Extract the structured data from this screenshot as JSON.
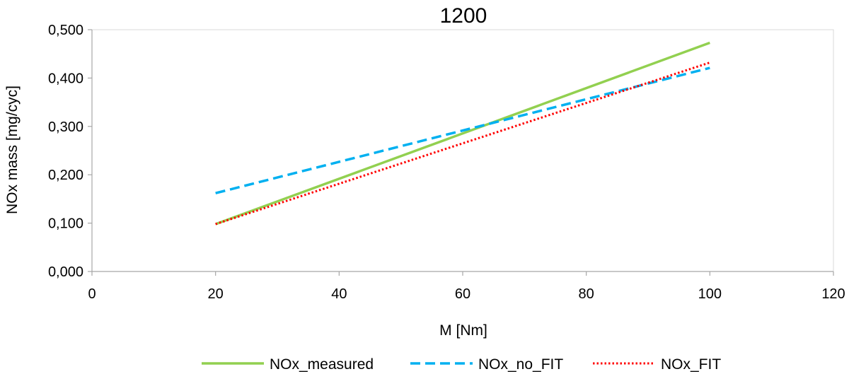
{
  "chart_data": {
    "type": "line",
    "title": "1200",
    "xlabel": "M [Nm]",
    "ylabel": "NOx mass [mg/cyc]",
    "xlim": [
      0,
      120
    ],
    "ylim": [
      0,
      0.5
    ],
    "x_ticks": [
      "0",
      "20",
      "40",
      "60",
      "80",
      "100",
      "120"
    ],
    "y_ticks": [
      "0,000",
      "0,100",
      "0,200",
      "0,300",
      "0,400",
      "0,500"
    ],
    "grid": false,
    "legend_position": "bottom",
    "x": [
      20,
      100
    ],
    "series": [
      {
        "name": "NOx_measured",
        "color": "#92d050",
        "style": "solid",
        "values": [
          0.098,
          0.473
        ]
      },
      {
        "name": "NOx_no_FIT",
        "color": "#00b0f0",
        "style": "dashed",
        "values": [
          0.162,
          0.421
        ]
      },
      {
        "name": "NOx_FIT",
        "color": "#ff0000",
        "style": "dotted",
        "values": [
          0.098,
          0.432
        ]
      }
    ]
  }
}
